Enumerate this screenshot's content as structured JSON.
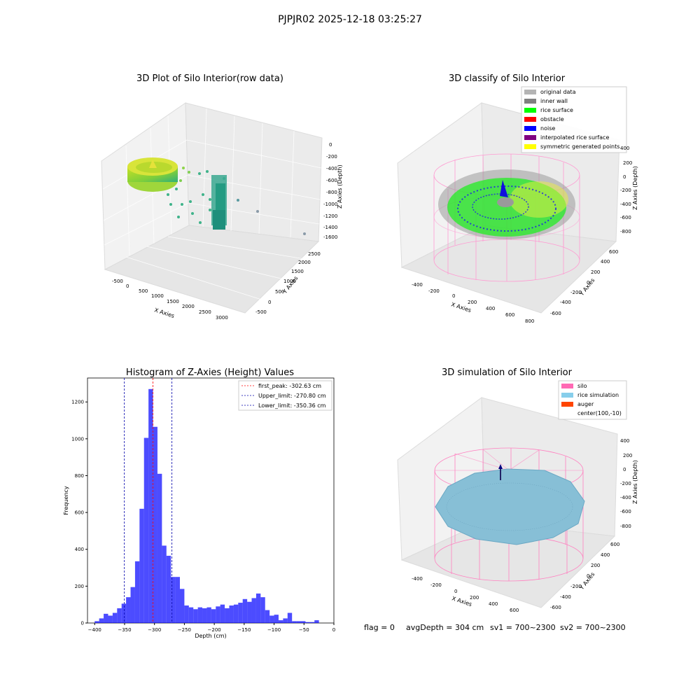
{
  "figure": {
    "suptitle": "PJPJR02 2025-12-18 03:25:27",
    "footer": {
      "flag": "flag = 0",
      "avg_depth": "avgDepth = 304 cm",
      "sv1": "sv1 = 700~2300",
      "sv2": "sv2 = 700~2300"
    }
  },
  "panels": {
    "raw": {
      "title": "3D Plot of Silo Interior(row data)",
      "xlabel": "X Axies",
      "ylabel": "Y Axies",
      "zlabel": "Z Axies (Depth)",
      "xticks": [
        "-500",
        "0",
        "500",
        "1000",
        "1500",
        "2000",
        "2500",
        "3000"
      ],
      "yticks": [
        "-500",
        "0",
        "500",
        "1000",
        "1500",
        "2000",
        "2500"
      ],
      "zticks": [
        "0",
        "-200",
        "-400",
        "-600",
        "-800",
        "-1000",
        "-1200",
        "-1400",
        "-1600"
      ]
    },
    "classify": {
      "title": "3D classify of Silo Interior",
      "xlabel": "X Axies",
      "ylabel": "Y Axies",
      "zlabel": "Z Axies (Depth)",
      "xticks": [
        "-400",
        "-200",
        "0",
        "200",
        "400",
        "600",
        "800"
      ],
      "yticks": [
        "600",
        "400",
        "200",
        "0",
        "-200",
        "-400",
        "-600"
      ],
      "zticks": [
        "400",
        "200",
        "0",
        "-200",
        "-400",
        "-600",
        "-800"
      ],
      "legend": [
        {
          "label": "original data",
          "color": "#b4b4b4"
        },
        {
          "label": "inner wall",
          "color": "#808080"
        },
        {
          "label": "rice surface",
          "color": "#00ff00"
        },
        {
          "label": "obstacle",
          "color": "#ff0000"
        },
        {
          "label": "noise",
          "color": "#0000ff"
        },
        {
          "label": "interpolated rice surface",
          "color": "#800080"
        },
        {
          "label": "symmetric generated points",
          "color": "#ffff00"
        }
      ]
    },
    "simulation": {
      "title": "3D simulation of Silo Interior",
      "xlabel": "X Axies",
      "ylabel": "Y Axies",
      "zlabel": "Z Axies (Depth)",
      "xticks": [
        "-400",
        "-200",
        "0",
        "200",
        "400",
        "600"
      ],
      "yticks": [
        "600",
        "400",
        "200",
        "0",
        "-200",
        "-400",
        "-600"
      ],
      "zticks": [
        "400",
        "200",
        "0",
        "-200",
        "-400",
        "-600",
        "-800"
      ],
      "legend": [
        {
          "label": "silo",
          "color": "#ff69b4"
        },
        {
          "label": "rice simulation",
          "color": "#87ceeb"
        },
        {
          "label": "auger",
          "color": "#ff4500"
        },
        {
          "label": "center(100,-10)",
          "color": ""
        }
      ]
    }
  },
  "chart_data": {
    "type": "bar",
    "title": "Histogram of Z-Axies (Height) Values",
    "xlabel": "Depth (cm)",
    "ylabel": "Frequency",
    "xlim": [
      -412,
      0
    ],
    "ylim": [
      0,
      1330
    ],
    "xticks": [
      -400,
      -350,
      -300,
      -250,
      -200,
      -150,
      -100,
      -50,
      0
    ],
    "yticks": [
      0,
      200,
      400,
      600,
      800,
      1000,
      1200
    ],
    "bin_width": 7.5,
    "bin_start": -400,
    "values": [
      10,
      25,
      50,
      40,
      55,
      80,
      105,
      140,
      195,
      335,
      620,
      1005,
      1270,
      1065,
      810,
      420,
      365,
      250,
      250,
      185,
      95,
      85,
      75,
      85,
      80,
      85,
      75,
      90,
      100,
      80,
      95,
      100,
      110,
      130,
      115,
      135,
      160,
      140,
      70,
      40,
      45,
      15,
      25,
      55,
      10,
      10,
      10,
      5,
      5,
      15
    ],
    "bar_color": "#0000ff",
    "vlines": [
      {
        "label": "first_peak: -302.63 cm",
        "x": -302.63,
        "color": "#ff0000"
      },
      {
        "label": "Upper_limit: -270.80 cm",
        "x": -270.8,
        "color": "#0000aa"
      },
      {
        "label": "Lower_limit: -350.36 cm",
        "x": -350.36,
        "color": "#0000aa"
      }
    ],
    "legend_position": "top-right"
  }
}
